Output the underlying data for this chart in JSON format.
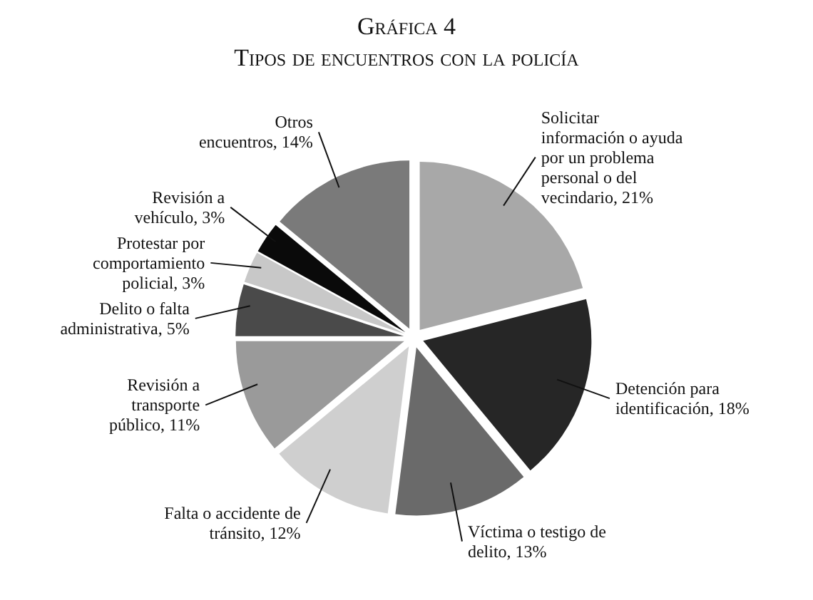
{
  "chart_data": {
    "type": "pie",
    "title": "Gráfica 4",
    "subtitle": "Tipos de encuentros con la policía",
    "categories": [
      "Solicitar información o ayuda por un problema personal o del vecindario",
      "Detención para identificación",
      "Víctima o testigo de delito",
      "Falta o accidente de tránsito",
      "Revisión a transporte público",
      "Delito o falta administrativa",
      "Protestar por comportamiento policial",
      "Revisión a vehículo",
      "Otros encuentros"
    ],
    "values": [
      21,
      18,
      13,
      12,
      11,
      5,
      3,
      3,
      14
    ],
    "value_labels": [
      "21%",
      "18%",
      "13%",
      "12%",
      "11%",
      "5%",
      "3%",
      "3%",
      "14%"
    ],
    "colors": [
      "#a8a8a8",
      "#262626",
      "#6a6a6a",
      "#cfcfcf",
      "#9a9a9a",
      "#4a4a4a",
      "#c8c8c8",
      "#0a0a0a",
      "#7a7a7a"
    ],
    "legend": false
  }
}
